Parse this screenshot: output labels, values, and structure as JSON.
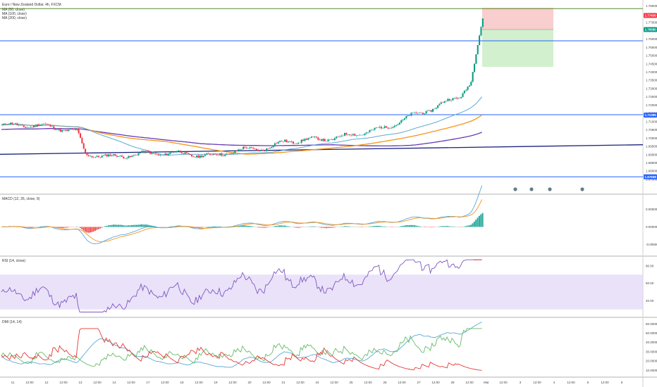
{
  "chart_data": {
    "type": "line",
    "title": "Euro / New Zealand Dollar, 4h, FXCM",
    "legend_items": [
      "MA (50, close)",
      "MA (100, close)",
      "MA (200, close)"
    ],
    "price_axis": {
      "min": 1.672,
      "max": 1.782,
      "ticks": [
        "1.78000",
        "1.77500",
        "1.77000",
        "1.76500",
        "1.76000",
        "1.75500",
        "1.75000",
        "1.74500",
        "1.74000",
        "1.73500",
        "1.73000",
        "1.72500",
        "1.72000",
        "1.71500",
        "1.71000",
        "1.70500",
        "1.70000",
        "1.69500",
        "1.69000",
        "1.68500",
        "1.68000",
        "1.67500"
      ],
      "tick_values": [
        1.78,
        1.775,
        1.77,
        1.765,
        1.76,
        1.755,
        1.75,
        1.745,
        1.74,
        1.735,
        1.73,
        1.725,
        1.72,
        1.715,
        1.71,
        1.705,
        1.7,
        1.695,
        1.69,
        1.685,
        1.68,
        1.675
      ]
    },
    "price_labels": [
      {
        "text": "1.77430",
        "value": 1.7743,
        "color": "#f23645"
      },
      {
        "text": "1.76580",
        "value": 1.7658,
        "color": "#089981"
      },
      {
        "text": "1.71395",
        "value": 1.71395,
        "color": "#2962ff"
      },
      {
        "text": "1.67658",
        "value": 1.67658,
        "color": "#2962ff"
      }
    ],
    "horizontal_levels": [
      {
        "value": 1.7785,
        "color": "#5b8c2a"
      },
      {
        "value": 1.759,
        "color": "#2962ff"
      },
      {
        "value": 1.7142,
        "color": "#2962ff"
      },
      {
        "value": 1.6766,
        "color": "#2962ff"
      }
    ],
    "trendline": {
      "from": [
        0,
        1.6902
      ],
      "to": [
        1,
        1.696
      ],
      "color": "#1a237e"
    },
    "position_tool": {
      "entry": 1.7658,
      "stop": 1.779,
      "target": 1.7432
    },
    "x_ticks": [
      "11",
      "12:00",
      "12",
      "12:00",
      "13",
      "12:00",
      "14",
      "12:00",
      "17",
      "12:00",
      "18",
      "12:00",
      "19",
      "12:00",
      "20",
      "12:00",
      "21",
      "12:00",
      "24",
      "12:00",
      "25",
      "12:00",
      "26",
      "12:00",
      "27",
      "12:00",
      "28",
      "12:00",
      "Mar",
      "12:00",
      "3",
      "12:00",
      "4",
      "12:00",
      "5",
      "12:00",
      "6"
    ],
    "macd": {
      "title": "MACD (12, 26, close, 9)",
      "ticks": [
        "0.00500",
        "0.00000",
        "-0.00500"
      ],
      "tick_values": [
        0.005,
        0,
        -0.005
      ]
    },
    "rsi": {
      "title": "RSI (14, close)",
      "ticks": [
        "80.00",
        "60.00",
        "40.00"
      ],
      "tick_values": [
        80,
        60,
        40
      ],
      "band": [
        30,
        70
      ]
    },
    "dmi": {
      "title": "DMI (14, 14)",
      "ticks": [
        "60.00000",
        "50.00000",
        "40.00000",
        "30.00000",
        "20.00000",
        "10.00000"
      ],
      "tick_values": [
        60,
        50,
        40,
        30,
        20,
        10
      ]
    }
  }
}
